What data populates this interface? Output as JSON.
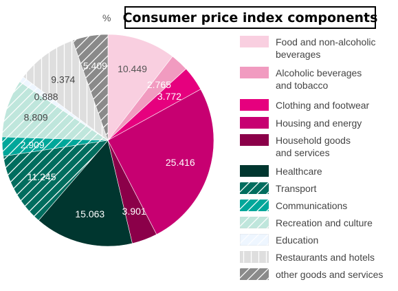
{
  "chart_data": {
    "type": "pie",
    "title": "Consumer price index components",
    "unit": "%",
    "slices": [
      {
        "label": "Food and non-alcoholic beverages",
        "value": 10.449,
        "color": "#f9cfe0",
        "pattern": "solid",
        "label_color": "#555555"
      },
      {
        "label": "Alcoholic beverages and tobacco",
        "value": 2.765,
        "color": "#f19bc0",
        "pattern": "solid",
        "label_color": "#ffffff"
      },
      {
        "label": "Clothing and footwear",
        "value": 3.772,
        "color": "#e6007e",
        "pattern": "solid",
        "label_color": "#ffffff"
      },
      {
        "label": "Housing and energy",
        "value": 25.416,
        "color": "#c70071",
        "pattern": "solid",
        "label_color": "#ffffff"
      },
      {
        "label": "Household goods and services",
        "value": 3.901,
        "color": "#8b0049",
        "pattern": "solid",
        "label_color": "#ffffff"
      },
      {
        "label": "Healthcare",
        "value": 15.063,
        "color": "#00362f",
        "pattern": "solid",
        "label_color": "#ffffff"
      },
      {
        "label": "Transport",
        "value": 11.245,
        "color": "#006d5e",
        "pattern": "diag",
        "label_color": "#ffffff"
      },
      {
        "label": "Communications",
        "value": 2.909,
        "color": "#00a79a",
        "pattern": "diag",
        "label_color": "#ffffff"
      },
      {
        "label": "Recreation and culture",
        "value": 8.809,
        "color": "#bfe6dc",
        "pattern": "diag",
        "label_color": "#444444"
      },
      {
        "label": "Education",
        "value": 0.888,
        "color": "#eef6ff",
        "pattern": "diag",
        "label_color": "#444444"
      },
      {
        "label": "Restaurants and hotels",
        "value": 9.374,
        "color": "#dedede",
        "pattern": "vert",
        "label_color": "#444444"
      },
      {
        "label": "other goods and services",
        "value": 5.409,
        "color": "#8a8a8a",
        "pattern": "diag",
        "label_color": "#ffffff"
      }
    ],
    "legend": {
      "position": "right",
      "items": [
        {
          "line1": "Food and non-alcoholic",
          "line2": "beverages"
        },
        {
          "line1": "Alcoholic beverages",
          "line2": "and tobacco"
        },
        {
          "line1": "Clothing and footwear",
          "line2": ""
        },
        {
          "line1": "Housing and energy",
          "line2": ""
        },
        {
          "line1": "Household goods",
          "line2": "and services"
        },
        {
          "line1": "Healthcare",
          "line2": ""
        },
        {
          "line1": "Transport",
          "line2": ""
        },
        {
          "line1": "Communications",
          "line2": ""
        },
        {
          "line1": "Recreation and culture",
          "line2": ""
        },
        {
          "line1": "Education",
          "line2": ""
        },
        {
          "line1": "Restaurants and hotels",
          "line2": ""
        },
        {
          "line1": "other goods and services",
          "line2": ""
        }
      ]
    }
  }
}
